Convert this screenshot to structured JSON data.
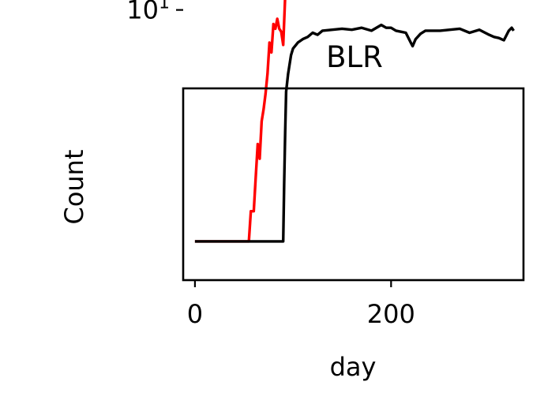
{
  "chart_data": {
    "type": "line",
    "title": "BLR",
    "xlabel": "day",
    "ylabel": "Count",
    "xlim": [
      -12,
      335
    ],
    "ylim_log10": [
      -0.55,
      0.55
    ],
    "log_y": true,
    "grid": false,
    "legend": "none",
    "xticks": [
      0,
      200
    ],
    "xtick_labels": [
      "0",
      "200"
    ],
    "yticks": [
      10
    ],
    "ytick_labels": [
      {
        "base": "10",
        "exp": "1"
      }
    ],
    "series": [
      {
        "color": "#ff0000",
        "x": [
          0,
          55,
          57,
          60,
          62,
          64,
          66,
          68,
          70,
          72,
          74,
          76,
          78,
          80,
          82,
          84,
          86,
          88,
          90,
          92,
          95,
          98,
          100,
          102,
          105,
          108,
          112,
          116,
          120,
          125,
          130,
          140,
          150,
          160,
          170,
          180,
          190,
          195,
          200,
          210,
          220,
          225,
          228,
          232,
          235,
          240,
          250,
          255,
          260,
          265,
          270,
          275,
          280,
          285,
          290,
          295,
          300,
          305,
          310,
          315,
          320,
          323,
          325
        ],
        "y": [
          0.47,
          0.47,
          0.7,
          0.7,
          1.1,
          1.7,
          1.4,
          2.3,
          2.7,
          3.3,
          4.3,
          6.5,
          5.7,
          8.3,
          7.8,
          8.9,
          7.8,
          7.5,
          6.3,
          12,
          13,
          17.5,
          22.7,
          25.5,
          28.4,
          30,
          31.8,
          33.7,
          35.3,
          36.3,
          36.3,
          36.3,
          35.7,
          34.7,
          31.1,
          26.1,
          23.5,
          23.3,
          22.5,
          21.4,
          20.5,
          20.0,
          19.5,
          19.5,
          20.5,
          22.5,
          23.1,
          23.0,
          23.5,
          24.2,
          25.2,
          25.6,
          27.7,
          30.0,
          30.3,
          32.2,
          33.3,
          35.3,
          36.3,
          37.5,
          38.0,
          39.8,
          38.8
        ]
      },
      {
        "color": "#000000",
        "x": [
          0,
          90,
          91,
          92,
          93,
          95,
          98,
          100,
          105,
          110,
          115,
          120,
          125,
          130,
          140,
          150,
          160,
          170,
          180,
          190,
          195,
          200,
          205,
          210,
          215,
          220,
          222,
          225,
          230,
          235,
          240,
          250,
          260,
          270,
          280,
          290,
          300,
          305,
          310,
          315,
          320,
          323,
          325
        ],
        "y": [
          0.47,
          0.47,
          1.0,
          2.0,
          3.4,
          4.3,
          5.5,
          6.0,
          6.5,
          6.8,
          7.0,
          7.4,
          7.2,
          7.6,
          7.7,
          7.8,
          7.7,
          7.9,
          7.6,
          8.2,
          7.9,
          7.9,
          7.6,
          7.5,
          7.4,
          6.5,
          6.2,
          6.8,
          7.3,
          7.6,
          7.6,
          7.6,
          7.7,
          7.8,
          7.4,
          7.7,
          7.2,
          7.0,
          6.9,
          6.7,
          7.6,
          7.9,
          7.6
        ]
      }
    ]
  }
}
